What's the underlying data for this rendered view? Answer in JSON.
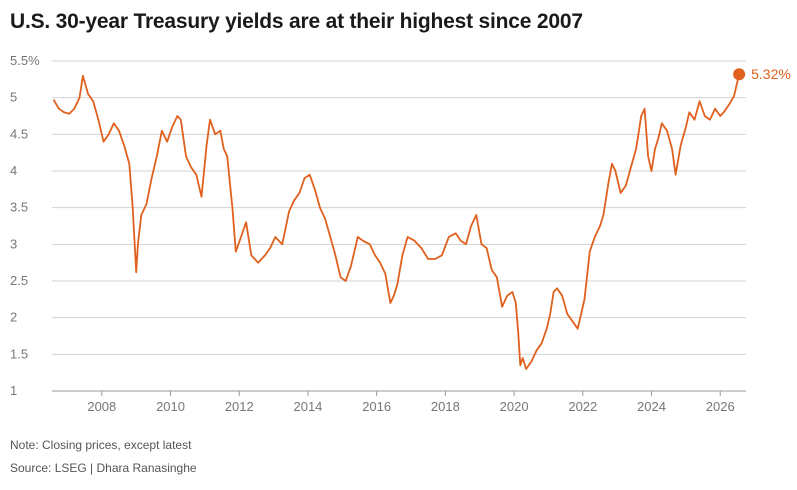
{
  "title": "U.S. 30-year Treasury yields are at their highest since 2007",
  "footer": {
    "note": "Note: Closing prices, except latest",
    "source": "Source: LSEG | Dhara Ranasinghe"
  },
  "colors": {
    "series": "#e0601e",
    "grid": "#d3d3d3",
    "ticks": "#777777"
  },
  "chart_data": {
    "type": "line",
    "title": "U.S. 30-year Treasury yields are at their highest since 2007",
    "xlabel": "",
    "ylabel": "",
    "y_unit": "%",
    "ylim": [
      1,
      5.5
    ],
    "xlim": [
      2006.55,
      2026.75
    ],
    "grid": "horizontal",
    "yticks": [
      {
        "value": 5.5,
        "label": "5.5%"
      },
      {
        "value": 5,
        "label": "5"
      },
      {
        "value": 4.5,
        "label": "4.5"
      },
      {
        "value": 4,
        "label": "4"
      },
      {
        "value": 3.5,
        "label": "3.5"
      },
      {
        "value": 3,
        "label": "3"
      },
      {
        "value": 2.5,
        "label": "2.5"
      },
      {
        "value": 2,
        "label": "2"
      },
      {
        "value": 1.5,
        "label": "1.5"
      },
      {
        "value": 1,
        "label": "1"
      }
    ],
    "xticks": [
      {
        "value": 2008,
        "label": "2008"
      },
      {
        "value": 2010,
        "label": "2010"
      },
      {
        "value": 2012,
        "label": "2012"
      },
      {
        "value": 2014,
        "label": "2014"
      },
      {
        "value": 2016,
        "label": "2016"
      },
      {
        "value": 2018,
        "label": "2018"
      },
      {
        "value": 2020,
        "label": "2020"
      },
      {
        "value": 2022,
        "label": "2022"
      },
      {
        "value": 2024,
        "label": "2024"
      },
      {
        "value": 2026,
        "label": "2026"
      }
    ],
    "series": [
      {
        "x": [
          2006.6,
          2006.75,
          2006.9,
          2007.05,
          2007.2,
          2007.35,
          2007.45,
          2007.6,
          2007.75,
          2007.9,
          2008.05,
          2008.2,
          2008.35,
          2008.5,
          2008.65,
          2008.8,
          2008.9,
          2009.0,
          2009.05,
          2009.15,
          2009.3,
          2009.45,
          2009.6,
          2009.75,
          2009.9,
          2010.05,
          2010.2,
          2010.3,
          2010.45,
          2010.6,
          2010.75,
          2010.9,
          2011.05,
          2011.15,
          2011.3,
          2011.45,
          2011.55,
          2011.65,
          2011.8,
          2011.9,
          2012.05,
          2012.2,
          2012.35,
          2012.55,
          2012.75,
          2012.9,
          2013.05,
          2013.25,
          2013.45,
          2013.6,
          2013.75,
          2013.9,
          2014.05,
          2014.2,
          2014.35,
          2014.5,
          2014.65,
          2014.8,
          2014.95,
          2015.1,
          2015.25,
          2015.45,
          2015.6,
          2015.8,
          2015.95,
          2016.1,
          2016.25,
          2016.4,
          2016.5,
          2016.6,
          2016.75,
          2016.9,
          2017.1,
          2017.3,
          2017.5,
          2017.7,
          2017.9,
          2018.1,
          2018.3,
          2018.45,
          2018.6,
          2018.75,
          2018.9,
          2019.05,
          2019.2,
          2019.35,
          2019.5,
          2019.65,
          2019.8,
          2019.95,
          2020.05,
          2020.12,
          2020.18,
          2020.25,
          2020.35,
          2020.5,
          2020.65,
          2020.8,
          2020.95,
          2021.05,
          2021.15,
          2021.25,
          2021.4,
          2021.55,
          2021.7,
          2021.85,
          2021.95,
          2022.05,
          2022.2,
          2022.35,
          2022.5,
          2022.6,
          2022.75,
          2022.85,
          2022.95,
          2023.1,
          2023.25,
          2023.4,
          2023.55,
          2023.7,
          2023.8,
          2023.9,
          2024.0,
          2024.1,
          2024.2,
          2024.3,
          2024.45,
          2024.6,
          2024.7,
          2024.85,
          2025.0,
          2025.1,
          2025.25,
          2025.4,
          2025.55,
          2025.7,
          2025.85,
          2026.0,
          2026.1,
          2026.25,
          2026.4,
          2026.55
        ],
        "values": [
          4.97,
          4.85,
          4.8,
          4.78,
          4.85,
          5.0,
          5.3,
          5.05,
          4.95,
          4.7,
          4.4,
          4.5,
          4.65,
          4.55,
          4.35,
          4.1,
          3.5,
          2.62,
          3.0,
          3.4,
          3.55,
          3.9,
          4.2,
          4.55,
          4.4,
          4.6,
          4.75,
          4.7,
          4.2,
          4.05,
          3.95,
          3.65,
          4.35,
          4.7,
          4.5,
          4.55,
          4.3,
          4.2,
          3.5,
          2.9,
          3.1,
          3.3,
          2.85,
          2.75,
          2.85,
          2.95,
          3.1,
          3.0,
          3.45,
          3.6,
          3.7,
          3.9,
          3.95,
          3.75,
          3.5,
          3.35,
          3.1,
          2.85,
          2.55,
          2.5,
          2.7,
          3.1,
          3.05,
          3.0,
          2.85,
          2.75,
          2.6,
          2.2,
          2.3,
          2.45,
          2.85,
          3.1,
          3.05,
          2.95,
          2.8,
          2.8,
          2.85,
          3.1,
          3.15,
          3.05,
          3.0,
          3.25,
          3.4,
          3.0,
          2.95,
          2.65,
          2.55,
          2.15,
          2.3,
          2.35,
          2.2,
          1.8,
          1.35,
          1.45,
          1.3,
          1.4,
          1.55,
          1.65,
          1.85,
          2.05,
          2.35,
          2.4,
          2.3,
          2.05,
          1.95,
          1.85,
          2.05,
          2.25,
          2.9,
          3.1,
          3.25,
          3.4,
          3.85,
          4.1,
          4.0,
          3.7,
          3.8,
          4.05,
          4.3,
          4.75,
          4.85,
          4.2,
          4.0,
          4.3,
          4.45,
          4.65,
          4.55,
          4.3,
          3.95,
          4.35,
          4.6,
          4.8,
          4.7,
          4.95,
          4.75,
          4.7,
          4.85,
          4.75,
          4.8,
          4.9,
          5.02,
          5.32
        ]
      }
    ],
    "annotations": [
      {
        "label": "5.32%",
        "x": 2026.55,
        "y": 5.32
      }
    ]
  }
}
